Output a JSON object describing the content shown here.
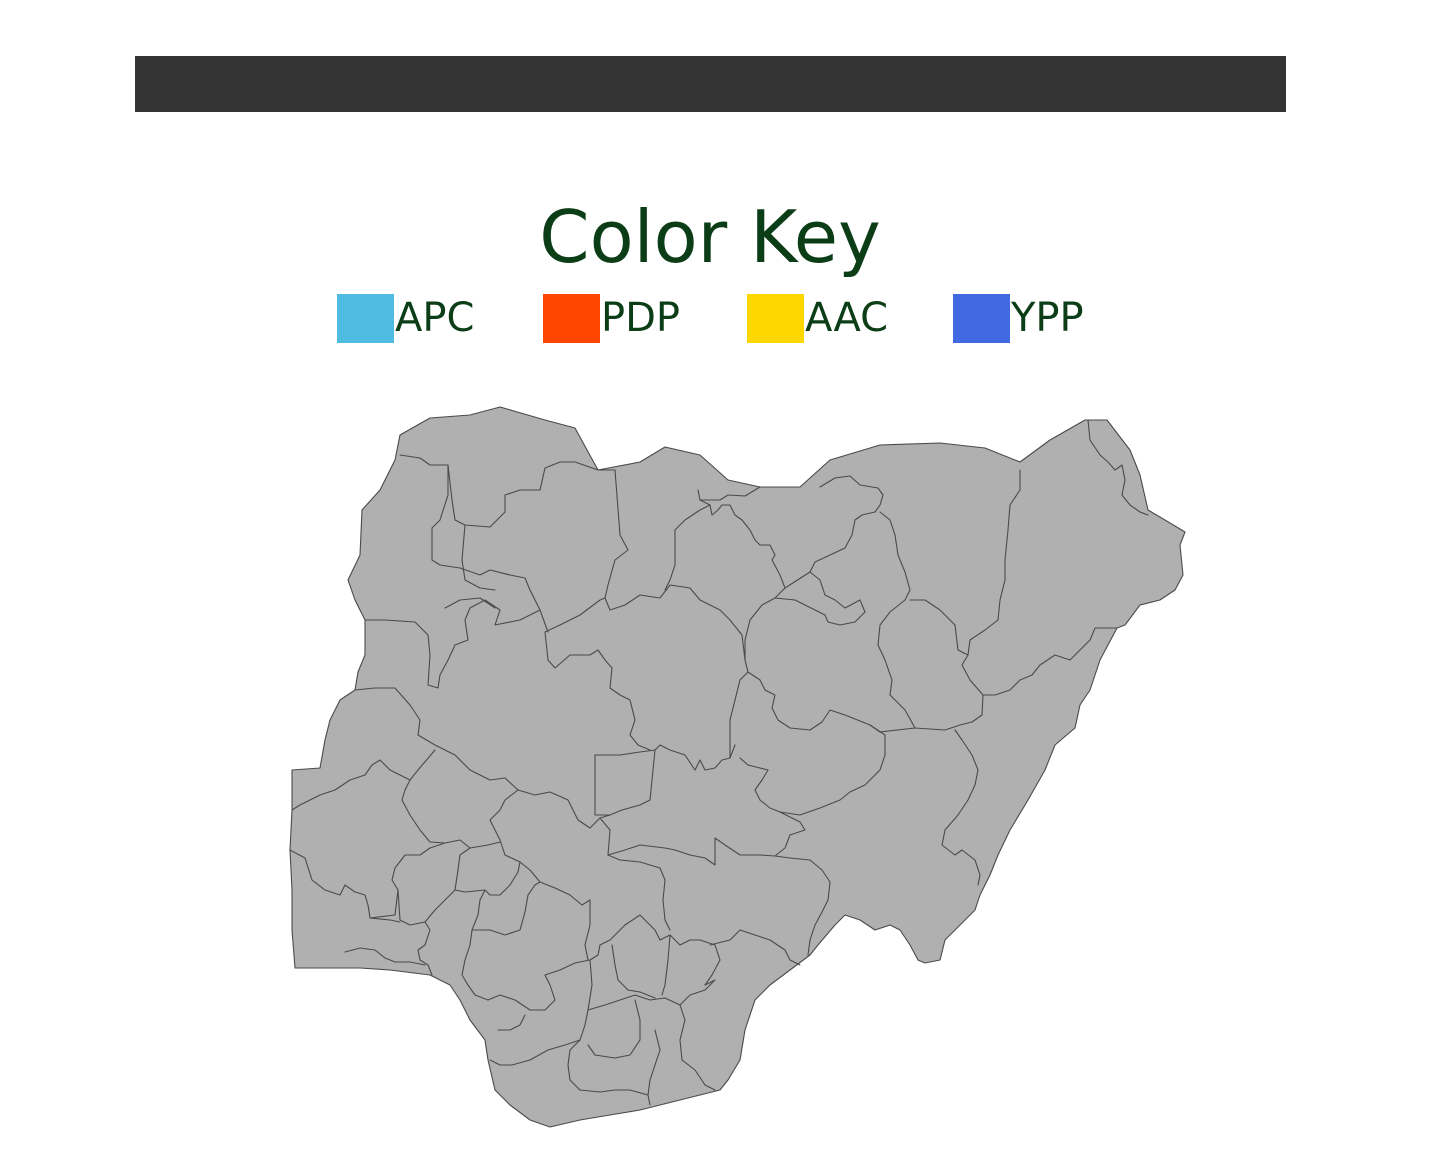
{
  "header": {
    "bar_color": "#333333"
  },
  "color_key": {
    "title": "Color Key",
    "title_color": "#0b3d17",
    "items": [
      {
        "label": "APC",
        "color": "#4fbbe0"
      },
      {
        "label": "PDP",
        "color": "#ff4500"
      },
      {
        "label": "AAC",
        "color": "#ffd700"
      },
      {
        "label": "YPP",
        "color": "#4169e1"
      }
    ]
  },
  "map": {
    "country": "Nigeria",
    "fill_color": "#b0b0b0",
    "border_color": "#4a4a4a"
  }
}
